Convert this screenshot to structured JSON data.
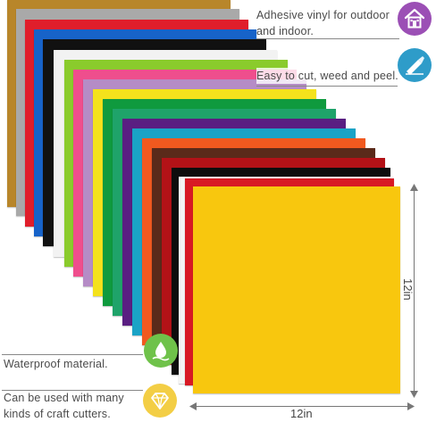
{
  "features": {
    "outdoor_line1": "Adhesive vinyl for outdoor",
    "outdoor_line2": "and indoor.",
    "cut": "Easy to cut, weed and peel.",
    "waterproof": "Waterproof material.",
    "cutters_line1": "Can be used with many",
    "cutters_line2": "kinds of craft cutters."
  },
  "dimensions": {
    "width_label": "12in",
    "height_label": "12in"
  },
  "icons": {
    "outdoor": "house-icon",
    "cut": "craft-knife-icon",
    "waterproof": "water-drop-icon",
    "cutters": "diamond-icon"
  },
  "colors": {
    "front_sheet": "#F8C70E",
    "outdoor_badge": "#9B4FB5",
    "cut_badge": "#2E9CC9",
    "waterproof_badge": "#6FC24A",
    "cutters_badge": "#F3CE45"
  }
}
